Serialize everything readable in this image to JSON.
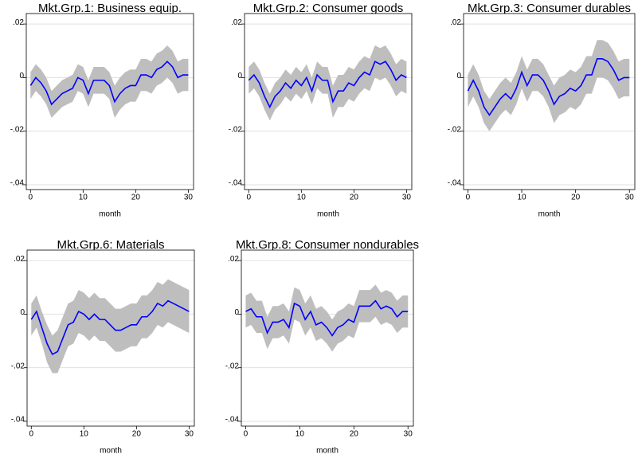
{
  "chart_data": [
    {
      "type": "line",
      "title": "Mkt.Grp.1: Business equip.",
      "xlabel": "month",
      "color": "#0000ff",
      "band_color": "#bebebe",
      "grid": true,
      "xlim": [
        -0.8,
        31
      ],
      "xticks": [
        0,
        10,
        20,
        30
      ],
      "ylim": [
        -0.0418,
        0.0239
      ],
      "yticks": [
        {
          "value": 0.02,
          "label": ".02"
        },
        0,
        {
          "value": -0.02,
          "label": "-.02"
        },
        {
          "value": -0.04,
          "label": "-.04"
        }
      ],
      "x": [
        0,
        1,
        2,
        3,
        4,
        5,
        6,
        7,
        8,
        9,
        10,
        11,
        12,
        13,
        14,
        15,
        16,
        17,
        18,
        19,
        20,
        21,
        22,
        23,
        24,
        25,
        26,
        27,
        28,
        29,
        30
      ],
      "values": [
        -0.003,
        0.0,
        -0.002,
        -0.005,
        -0.01,
        -0.008,
        -0.006,
        -0.005,
        -0.004,
        0.0,
        -0.001,
        -0.006,
        -0.001,
        -0.001,
        -0.001,
        -0.003,
        -0.009,
        -0.006,
        -0.004,
        -0.003,
        -0.003,
        0.001,
        0.001,
        0.0,
        0.003,
        0.004,
        0.006,
        0.004,
        0.0,
        0.001,
        0.001
      ],
      "upper": [
        0.002,
        0.005,
        0.003,
        0.0,
        -0.005,
        -0.003,
        -0.001,
        0.0,
        0.001,
        0.005,
        0.004,
        -0.001,
        0.004,
        0.004,
        0.004,
        0.002,
        -0.003,
        0.0,
        0.002,
        0.003,
        0.003,
        0.007,
        0.007,
        0.006,
        0.009,
        0.01,
        0.012,
        0.01,
        0.006,
        0.007,
        0.007
      ],
      "lower": [
        -0.008,
        -0.005,
        -0.007,
        -0.01,
        -0.015,
        -0.013,
        -0.011,
        -0.01,
        -0.009,
        -0.005,
        -0.006,
        -0.011,
        -0.006,
        -0.006,
        -0.006,
        -0.008,
        -0.015,
        -0.012,
        -0.01,
        -0.009,
        -0.009,
        -0.005,
        -0.005,
        -0.006,
        -0.003,
        -0.002,
        0.0,
        -0.002,
        -0.006,
        -0.005,
        -0.005
      ]
    },
    {
      "type": "line",
      "title": "Mkt.Grp.2: Consumer goods",
      "xlabel": "month",
      "color": "#0000ff",
      "band_color": "#bebebe",
      "grid": true,
      "xlim": [
        -0.8,
        31
      ],
      "xticks": [
        0,
        10,
        20,
        30
      ],
      "ylim": [
        -0.0418,
        0.0239
      ],
      "yticks": [
        {
          "value": 0.02,
          "label": ".02"
        },
        0,
        {
          "value": -0.02,
          "label": "-.02"
        },
        {
          "value": -0.04,
          "label": "-.04"
        }
      ],
      "x": [
        0,
        1,
        2,
        3,
        4,
        5,
        6,
        7,
        8,
        9,
        10,
        11,
        12,
        13,
        14,
        15,
        16,
        17,
        18,
        19,
        20,
        21,
        22,
        23,
        24,
        25,
        26,
        27,
        28,
        29,
        30
      ],
      "values": [
        -0.001,
        0.001,
        -0.002,
        -0.007,
        -0.011,
        -0.007,
        -0.005,
        -0.002,
        -0.004,
        -0.001,
        -0.003,
        0.0,
        -0.005,
        0.001,
        -0.001,
        -0.001,
        -0.009,
        -0.005,
        -0.005,
        -0.002,
        -0.003,
        0.0,
        0.002,
        0.001,
        0.006,
        0.005,
        0.006,
        0.003,
        -0.001,
        0.001,
        0.0
      ],
      "upper": [
        0.004,
        0.006,
        0.003,
        -0.002,
        -0.006,
        -0.002,
        0.0,
        0.003,
        0.001,
        0.004,
        0.002,
        0.005,
        0.0,
        0.006,
        0.004,
        0.004,
        -0.003,
        0.001,
        0.001,
        0.004,
        0.003,
        0.006,
        0.008,
        0.007,
        0.012,
        0.011,
        0.012,
        0.009,
        0.005,
        0.007,
        0.006
      ],
      "lower": [
        -0.006,
        -0.004,
        -0.007,
        -0.012,
        -0.016,
        -0.012,
        -0.01,
        -0.007,
        -0.009,
        -0.006,
        -0.008,
        -0.005,
        -0.01,
        -0.004,
        -0.006,
        -0.006,
        -0.015,
        -0.011,
        -0.011,
        -0.008,
        -0.009,
        -0.006,
        -0.004,
        -0.005,
        0.0,
        -0.001,
        0.0,
        -0.003,
        -0.007,
        -0.005,
        -0.006
      ]
    },
    {
      "type": "line",
      "title": "Mkt.Grp.3: Consumer durables",
      "xlabel": "month",
      "color": "#0000ff",
      "band_color": "#bebebe",
      "grid": true,
      "xlim": [
        -0.8,
        31
      ],
      "xticks": [
        0,
        10,
        20,
        30
      ],
      "ylim": [
        -0.0418,
        0.0239
      ],
      "yticks": [
        {
          "value": 0.02,
          "label": ".02"
        },
        0,
        {
          "value": -0.02,
          "label": "-.02"
        },
        {
          "value": -0.04,
          "label": "-.04"
        }
      ],
      "x": [
        0,
        1,
        2,
        3,
        4,
        5,
        6,
        7,
        8,
        9,
        10,
        11,
        12,
        13,
        14,
        15,
        16,
        17,
        18,
        19,
        20,
        21,
        22,
        23,
        24,
        25,
        26,
        27,
        28,
        29,
        30
      ],
      "values": [
        -0.005,
        -0.001,
        -0.005,
        -0.011,
        -0.014,
        -0.011,
        -0.008,
        -0.006,
        -0.008,
        -0.004,
        0.002,
        -0.003,
        0.001,
        0.001,
        -0.001,
        -0.005,
        -0.01,
        -0.007,
        -0.006,
        -0.004,
        -0.005,
        -0.003,
        0.001,
        0.001,
        0.007,
        0.007,
        0.006,
        0.003,
        -0.001,
        0.0,
        0.0
      ],
      "upper": [
        0.001,
        0.005,
        0.001,
        -0.005,
        -0.008,
        -0.005,
        -0.002,
        0.0,
        -0.002,
        0.002,
        0.008,
        0.003,
        0.007,
        0.007,
        0.005,
        0.001,
        -0.003,
        0.0,
        0.001,
        0.003,
        0.002,
        0.004,
        0.008,
        0.008,
        0.014,
        0.014,
        0.013,
        0.01,
        0.006,
        0.007,
        0.007
      ],
      "lower": [
        -0.011,
        -0.007,
        -0.011,
        -0.017,
        -0.02,
        -0.017,
        -0.014,
        -0.012,
        -0.014,
        -0.01,
        -0.004,
        -0.009,
        -0.005,
        -0.005,
        -0.007,
        -0.011,
        -0.017,
        -0.014,
        -0.013,
        -0.011,
        -0.012,
        -0.01,
        -0.006,
        -0.006,
        0.0,
        0.0,
        -0.001,
        -0.004,
        -0.008,
        -0.007,
        -0.007
      ]
    },
    {
      "type": "line",
      "title": "Mkt.Grp.6: Materials",
      "xlabel": "month",
      "color": "#0000ff",
      "band_color": "#bebebe",
      "grid": true,
      "xlim": [
        -0.8,
        31
      ],
      "xticks": [
        0,
        10,
        20,
        30
      ],
      "ylim": [
        -0.0418,
        0.0239
      ],
      "yticks": [
        {
          "value": 0.02,
          "label": ".02"
        },
        0,
        {
          "value": -0.02,
          "label": "-.02"
        },
        {
          "value": -0.04,
          "label": "-.04"
        }
      ],
      "x": [
        0,
        1,
        2,
        3,
        4,
        5,
        6,
        7,
        8,
        9,
        10,
        11,
        12,
        13,
        14,
        15,
        16,
        17,
        18,
        19,
        20,
        21,
        22,
        23,
        24,
        25,
        26,
        27,
        28,
        29,
        30
      ],
      "values": [
        -0.002,
        0.001,
        -0.005,
        -0.011,
        -0.015,
        -0.014,
        -0.009,
        -0.004,
        -0.003,
        0.001,
        0.0,
        -0.002,
        0.0,
        -0.002,
        -0.002,
        -0.004,
        -0.006,
        -0.006,
        -0.005,
        -0.004,
        -0.004,
        -0.001,
        -0.001,
        0.001,
        0.004,
        0.003,
        0.005,
        0.004,
        0.003,
        0.002,
        0.001
      ],
      "upper": [
        0.004,
        0.007,
        0.001,
        -0.004,
        -0.008,
        -0.006,
        -0.001,
        0.004,
        0.005,
        0.009,
        0.008,
        0.006,
        0.008,
        0.006,
        0.006,
        0.004,
        0.002,
        0.002,
        0.003,
        0.004,
        0.004,
        0.007,
        0.007,
        0.009,
        0.012,
        0.011,
        0.013,
        0.012,
        0.011,
        0.01,
        0.009
      ],
      "lower": [
        -0.008,
        -0.005,
        -0.011,
        -0.018,
        -0.022,
        -0.022,
        -0.017,
        -0.012,
        -0.011,
        -0.007,
        -0.008,
        -0.01,
        -0.008,
        -0.01,
        -0.01,
        -0.012,
        -0.014,
        -0.014,
        -0.013,
        -0.012,
        -0.012,
        -0.009,
        -0.009,
        -0.007,
        -0.004,
        -0.005,
        -0.003,
        -0.004,
        -0.005,
        -0.006,
        -0.007
      ]
    },
    {
      "type": "line",
      "title": "Mkt.Grp.8: Consumer nondurables",
      "xlabel": "month",
      "color": "#0000ff",
      "band_color": "#bebebe",
      "grid": true,
      "xlim": [
        -0.8,
        31
      ],
      "xticks": [
        0,
        10,
        20,
        30
      ],
      "ylim": [
        -0.0418,
        0.0239
      ],
      "yticks": [
        {
          "value": 0.02,
          "label": ".02"
        },
        0,
        {
          "value": -0.02,
          "label": "-.02"
        },
        {
          "value": -0.04,
          "label": "-.04"
        }
      ],
      "x": [
        0,
        1,
        2,
        3,
        4,
        5,
        6,
        7,
        8,
        9,
        10,
        11,
        12,
        13,
        14,
        15,
        16,
        17,
        18,
        19,
        20,
        21,
        22,
        23,
        24,
        25,
        26,
        27,
        28,
        29,
        30
      ],
      "values": [
        0.001,
        0.002,
        -0.001,
        -0.001,
        -0.007,
        -0.003,
        -0.003,
        -0.002,
        -0.005,
        0.004,
        0.003,
        -0.002,
        0.001,
        -0.004,
        -0.003,
        -0.005,
        -0.008,
        -0.005,
        -0.004,
        -0.002,
        -0.003,
        0.003,
        0.003,
        0.003,
        0.005,
        0.002,
        0.003,
        0.002,
        -0.001,
        0.001,
        0.001
      ],
      "upper": [
        0.007,
        0.008,
        0.005,
        0.005,
        -0.001,
        0.003,
        0.003,
        0.004,
        0.001,
        0.01,
        0.009,
        0.004,
        0.007,
        0.002,
        0.003,
        0.001,
        -0.002,
        0.001,
        0.002,
        0.004,
        0.003,
        0.009,
        0.009,
        0.009,
        0.011,
        0.008,
        0.009,
        0.008,
        0.005,
        0.007,
        0.007
      ],
      "lower": [
        -0.005,
        -0.004,
        -0.007,
        -0.007,
        -0.013,
        -0.009,
        -0.009,
        -0.008,
        -0.011,
        -0.002,
        -0.003,
        -0.008,
        -0.005,
        -0.01,
        -0.009,
        -0.011,
        -0.014,
        -0.011,
        -0.01,
        -0.008,
        -0.009,
        -0.003,
        -0.003,
        -0.003,
        -0.001,
        -0.004,
        -0.003,
        -0.004,
        -0.007,
        -0.005,
        -0.005
      ]
    }
  ]
}
